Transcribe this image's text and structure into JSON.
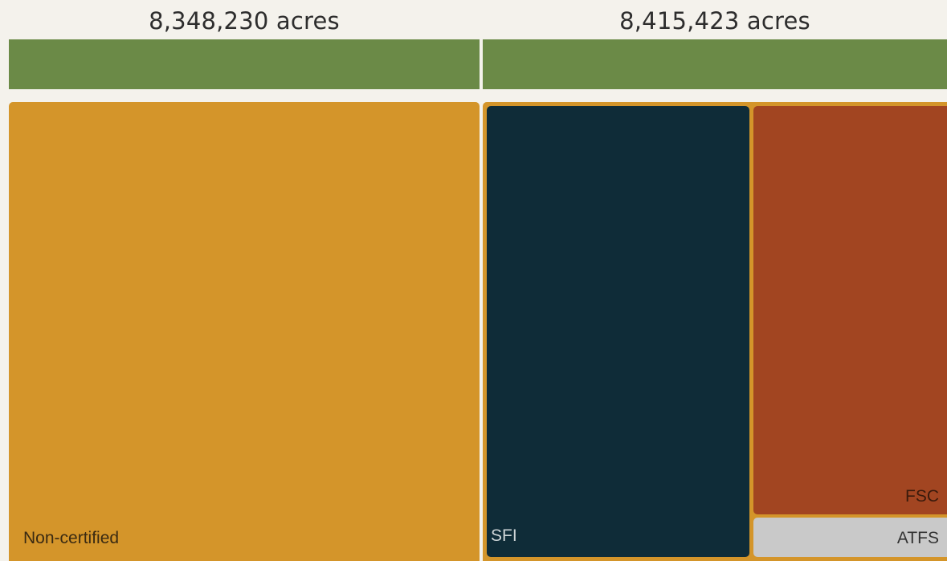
{
  "chart_data": {
    "type": "treemap",
    "columns": [
      {
        "total_label": "8,348,230 acres",
        "total": 8348230,
        "segments": [
          {
            "label": "Non-certified",
            "color": "#d4952a",
            "text_color": "#3a2a12"
          }
        ]
      },
      {
        "total_label": "8,415,423 acres",
        "total": 8415423,
        "segments": [
          {
            "label": "SFI",
            "color": "#0f2c38",
            "text_color": "#cfd6d8"
          },
          {
            "label": "FSC",
            "color": "#a24521",
            "text_color": "#3a1a0c"
          },
          {
            "label": "ATFS",
            "color": "#c9c9c9",
            "text_color": "#333333"
          }
        ]
      }
    ],
    "group_bar_color": "#6b8a47",
    "container_color": "#d4952a"
  }
}
